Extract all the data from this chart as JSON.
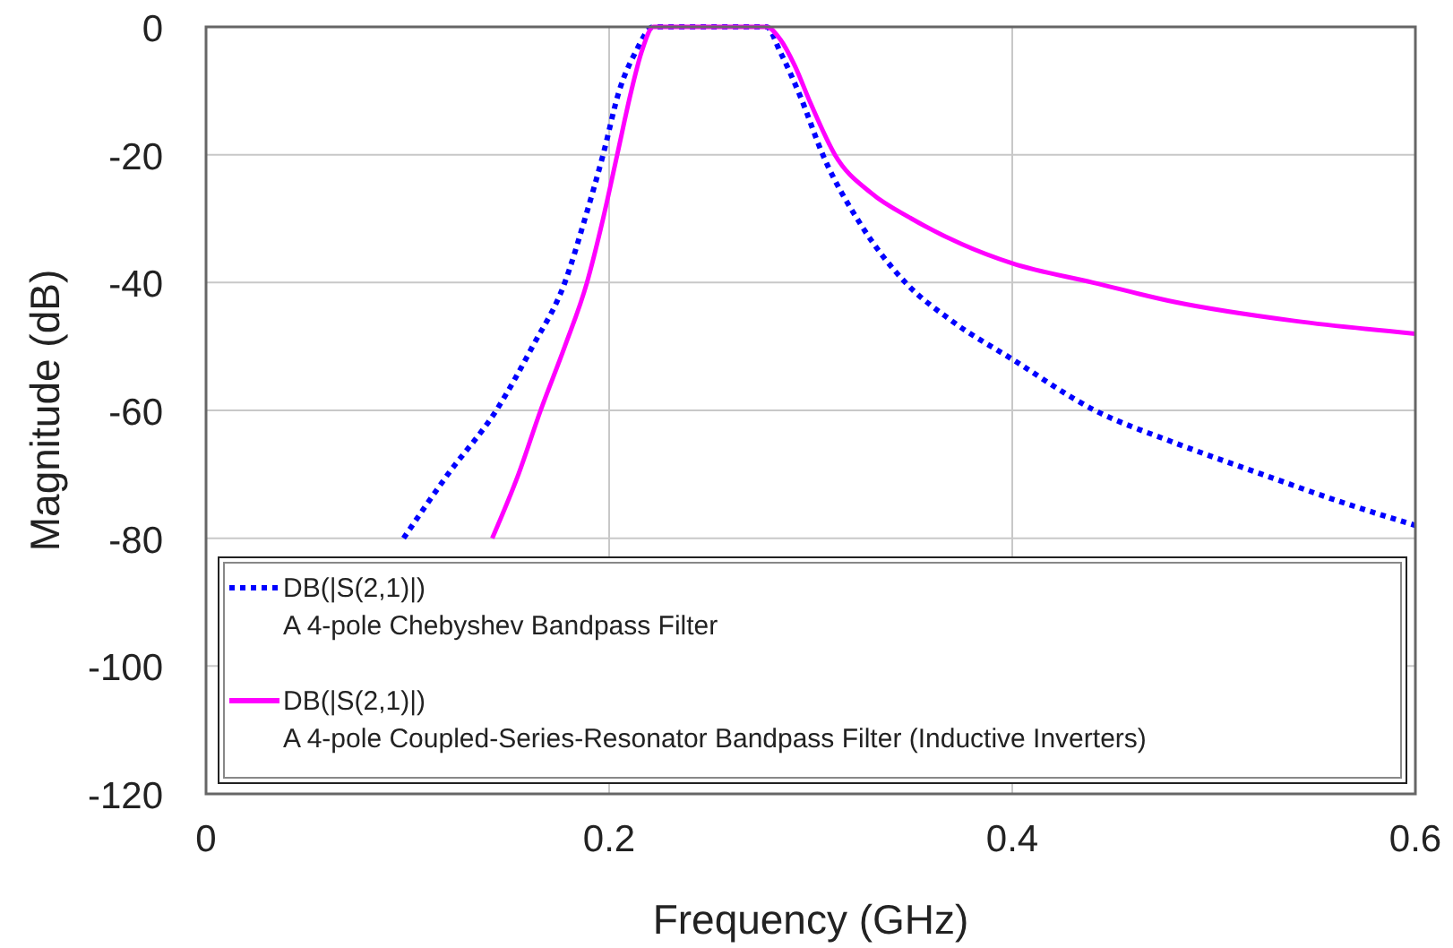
{
  "chart_data": {
    "type": "line",
    "xlabel": "Frequency (GHz)",
    "ylabel": "Magnitude (dB)",
    "xlim": [
      0,
      0.6
    ],
    "ylim": [
      -120,
      0
    ],
    "xticks": [
      0,
      0.2,
      0.4,
      0.6
    ],
    "yticks": [
      0,
      -20,
      -40,
      -60,
      -80,
      -100,
      -120
    ],
    "grid": true,
    "legend": "bottom",
    "series": [
      {
        "name": "DB(|S(2,1)|)\nA 4-pole Chebyshev Bandpass Filter",
        "color": "#0000ff",
        "line_style": "dotted",
        "x": [
          0.098,
          0.12,
          0.144,
          0.162,
          0.178,
          0.188,
          0.197,
          0.205,
          0.213,
          0.222,
          0.25,
          0.278,
          0.285,
          0.295,
          0.306,
          0.325,
          0.347,
          0.37,
          0.4,
          0.441,
          0.48,
          0.524,
          0.56,
          0.6
        ],
        "values": [
          -80,
          -70,
          -60,
          -50,
          -40,
          -30,
          -20,
          -10,
          -4,
          0,
          0,
          0,
          -4,
          -11,
          -20,
          -31,
          -40,
          -46,
          -52,
          -60,
          -65,
          -70,
          -74,
          -78
        ]
      },
      {
        "name": "DB(|S(2,1)|)\nA 4-pole Coupled-Series-Resonator Bandpass Filter (Inductive Inverters)",
        "color": "#ff00ff",
        "line_style": "solid",
        "x": [
          0.142,
          0.155,
          0.166,
          0.178,
          0.189,
          0.197,
          0.204,
          0.211,
          0.216,
          0.222,
          0.25,
          0.278,
          0.285,
          0.292,
          0.3,
          0.312,
          0.33,
          0.35,
          0.375,
          0.4,
          0.44,
          0.48,
          0.54,
          0.6
        ],
        "values": [
          -80,
          -70,
          -60,
          -50,
          -40,
          -30,
          -20,
          -10,
          -4,
          0,
          0,
          0,
          -2,
          -6,
          -12,
          -20,
          -26,
          -30,
          -34,
          -37,
          -40,
          -43,
          -46,
          -48
        ]
      }
    ]
  }
}
